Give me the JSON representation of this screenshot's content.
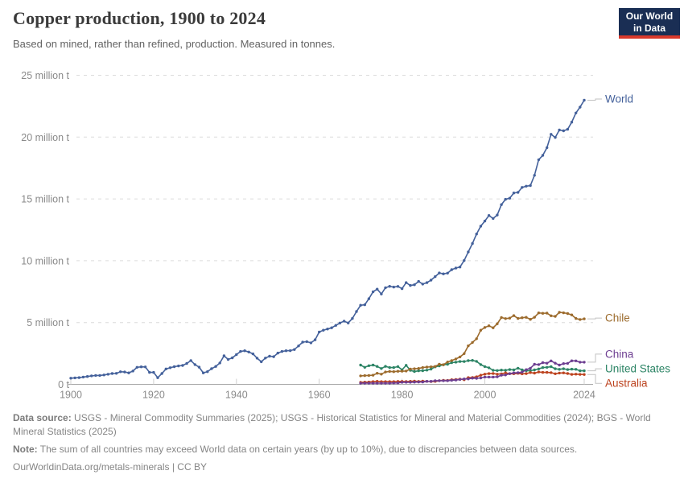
{
  "logo": {
    "line1": "Our World",
    "line2": "in Data"
  },
  "chart_data": {
    "type": "line",
    "title": "Copper production, 1900 to 2024",
    "subtitle": "Based on mined, rather than refined, production. Measured in tonnes.",
    "unit": "million tonnes",
    "grid": "horizontal dashed",
    "legend_position": "right of line ends",
    "xlim": [
      1899,
      2026
    ],
    "ylim": [
      0,
      25
    ],
    "x_ticks": [
      1900,
      1920,
      1940,
      1960,
      1980,
      2000,
      2024
    ],
    "y_ticks": [
      0,
      5,
      10,
      15,
      20,
      25
    ],
    "y_tick_labels": [
      "0 t",
      "5 million t",
      "10 million t",
      "15 million t",
      "20 million t",
      "25 million t"
    ],
    "series": [
      {
        "name": "World",
        "color": "#44619b",
        "start_year": 1900,
        "values": [
          0.5,
          0.53,
          0.55,
          0.59,
          0.64,
          0.69,
          0.72,
          0.72,
          0.76,
          0.82,
          0.88,
          0.89,
          1.02,
          1.0,
          0.93,
          1.08,
          1.38,
          1.42,
          1.41,
          0.97,
          0.97,
          0.54,
          0.88,
          1.25,
          1.35,
          1.43,
          1.49,
          1.53,
          1.69,
          1.93,
          1.6,
          1.39,
          0.93,
          1.03,
          1.27,
          1.45,
          1.73,
          2.31,
          2.02,
          2.15,
          2.41,
          2.66,
          2.72,
          2.62,
          2.47,
          2.12,
          1.83,
          2.13,
          2.28,
          2.24,
          2.53,
          2.66,
          2.72,
          2.73,
          2.82,
          3.11,
          3.42,
          3.46,
          3.36,
          3.61,
          4.24,
          4.38,
          4.48,
          4.58,
          4.77,
          4.96,
          5.12,
          4.97,
          5.33,
          5.89,
          6.4,
          6.44,
          6.93,
          7.49,
          7.7,
          7.31,
          7.82,
          7.93,
          7.87,
          7.92,
          7.74,
          8.23,
          8.0,
          8.06,
          8.33,
          8.11,
          8.23,
          8.43,
          8.72,
          9.01,
          8.94,
          9.0,
          9.28,
          9.41,
          9.49,
          10.02,
          10.71,
          11.39,
          12.16,
          12.79,
          13.21,
          13.66,
          13.42,
          13.7,
          14.54,
          14.97,
          15.06,
          15.48,
          15.53,
          15.93,
          16.03,
          16.08,
          16.91,
          18.17,
          18.52,
          19.15,
          20.23,
          19.97,
          20.57,
          20.51,
          20.63,
          21.21,
          21.95,
          22.42,
          22.98
        ]
      },
      {
        "name": "Chile",
        "color": "#9c6b2d",
        "start_year": 1970,
        "values": [
          0.69,
          0.71,
          0.72,
          0.74,
          0.9,
          0.83,
          1.0,
          1.05,
          1.03,
          1.06,
          1.07,
          1.08,
          1.24,
          1.26,
          1.29,
          1.36,
          1.4,
          1.42,
          1.45,
          1.63,
          1.59,
          1.81,
          1.93,
          2.06,
          2.22,
          2.49,
          3.12,
          3.39,
          3.69,
          4.38,
          4.6,
          4.74,
          4.58,
          4.9,
          5.41,
          5.32,
          5.36,
          5.56,
          5.33,
          5.39,
          5.42,
          5.26,
          5.43,
          5.78,
          5.75,
          5.76,
          5.55,
          5.5,
          5.83,
          5.79,
          5.73,
          5.62,
          5.33,
          5.25,
          5.3
        ]
      },
      {
        "name": "China",
        "color": "#6d3e91",
        "start_year": 1970,
        "values": [
          0.09,
          0.1,
          0.1,
          0.1,
          0.1,
          0.1,
          0.1,
          0.1,
          0.11,
          0.12,
          0.17,
          0.17,
          0.17,
          0.18,
          0.19,
          0.19,
          0.25,
          0.25,
          0.3,
          0.3,
          0.3,
          0.3,
          0.33,
          0.35,
          0.4,
          0.44,
          0.44,
          0.5,
          0.49,
          0.52,
          0.59,
          0.59,
          0.59,
          0.61,
          0.74,
          0.76,
          0.87,
          0.93,
          0.95,
          0.99,
          1.19,
          1.31,
          1.63,
          1.6,
          1.76,
          1.71,
          1.9,
          1.71,
          1.56,
          1.68,
          1.7,
          1.91,
          1.9,
          1.8,
          1.8
        ]
      },
      {
        "name": "United States",
        "color": "#2c8465",
        "start_year": 1970,
        "values": [
          1.56,
          1.38,
          1.51,
          1.56,
          1.45,
          1.28,
          1.46,
          1.36,
          1.36,
          1.44,
          1.18,
          1.54,
          1.14,
          1.04,
          1.1,
          1.11,
          1.15,
          1.24,
          1.42,
          1.5,
          1.59,
          1.63,
          1.76,
          1.8,
          1.85,
          1.85,
          1.92,
          1.94,
          1.86,
          1.6,
          1.44,
          1.34,
          1.14,
          1.12,
          1.16,
          1.14,
          1.2,
          1.17,
          1.31,
          1.18,
          1.11,
          1.11,
          1.17,
          1.25,
          1.36,
          1.38,
          1.43,
          1.26,
          1.22,
          1.26,
          1.2,
          1.23,
          1.22,
          1.1,
          1.1
        ]
      },
      {
        "name": "Australia",
        "color": "#bc431f",
        "start_year": 1970,
        "values": [
          0.16,
          0.18,
          0.19,
          0.22,
          0.25,
          0.22,
          0.22,
          0.22,
          0.22,
          0.24,
          0.24,
          0.23,
          0.25,
          0.26,
          0.24,
          0.26,
          0.25,
          0.23,
          0.24,
          0.3,
          0.33,
          0.32,
          0.38,
          0.4,
          0.42,
          0.38,
          0.55,
          0.56,
          0.61,
          0.74,
          0.83,
          0.87,
          0.88,
          0.83,
          0.85,
          0.93,
          0.86,
          0.86,
          0.89,
          0.85,
          0.87,
          0.96,
          0.91,
          1.0,
          0.97,
          0.97,
          0.95,
          0.86,
          0.92,
          0.93,
          0.88,
          0.81,
          0.83,
          0.81,
          0.8
        ]
      }
    ]
  },
  "footer": {
    "data_source_label": "Data source:",
    "data_source": "USGS - Mineral Commodity Summaries (2025); USGS - Historical Statistics for Mineral and Material Commodities (2024); BGS - World Mineral Statistics (2025)",
    "note_label": "Note:",
    "note": "The sum of all countries may exceed World data on certain years (by up to 10%), due to discrepancies between data sources.",
    "license": "OurWorldinData.org/metals-minerals | CC BY"
  }
}
